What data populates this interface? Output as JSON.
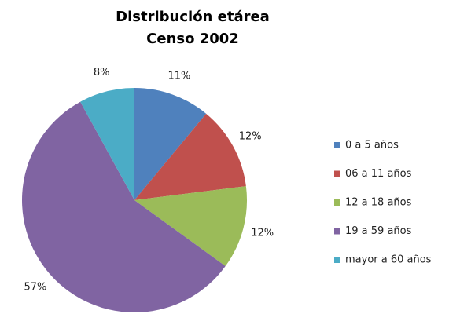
{
  "chart_data": {
    "type": "pie",
    "title": "Distribución etárea",
    "subtitle": "Censo 2002",
    "categories": [
      "0 a 5 años",
      "06 a 11 años",
      "12 a 18 años",
      "19 a 59 años",
      "mayor a 60 años"
    ],
    "values": [
      11,
      12,
      12,
      57,
      8
    ],
    "value_labels": [
      "11%",
      "12%",
      "12%",
      "57%",
      "8%"
    ],
    "colors": [
      "#4f81bd",
      "#c0504d",
      "#9bbb59",
      "#8064a2",
      "#4bacc6"
    ],
    "legend": "right"
  }
}
